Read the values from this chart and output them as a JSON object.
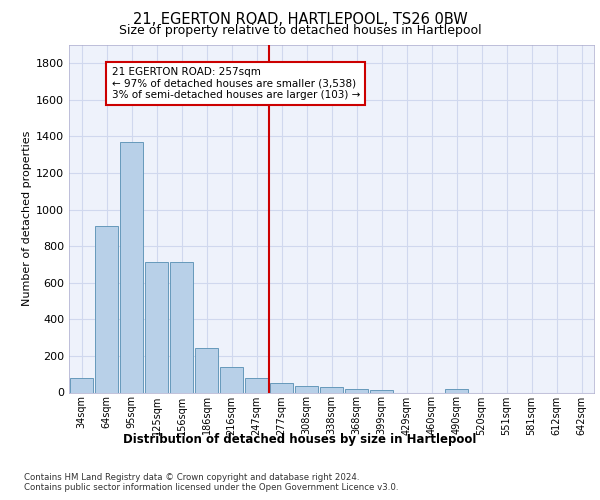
{
  "title": "21, EGERTON ROAD, HARTLEPOOL, TS26 0BW",
  "subtitle": "Size of property relative to detached houses in Hartlepool",
  "xlabel": "Distribution of detached houses by size in Hartlepool",
  "ylabel": "Number of detached properties",
  "categories": [
    "34sqm",
    "64sqm",
    "95sqm",
    "125sqm",
    "156sqm",
    "186sqm",
    "216sqm",
    "247sqm",
    "277sqm",
    "308sqm",
    "338sqm",
    "368sqm",
    "399sqm",
    "429sqm",
    "460sqm",
    "490sqm",
    "520sqm",
    "551sqm",
    "581sqm",
    "612sqm",
    "642sqm"
  ],
  "values": [
    80,
    910,
    1370,
    715,
    715,
    245,
    140,
    80,
    50,
    35,
    30,
    20,
    15,
    0,
    0,
    20,
    0,
    0,
    0,
    0,
    0
  ],
  "bar_color": "#b8d0e8",
  "bar_edge_color": "#6699bb",
  "vline_index": 7.5,
  "vline_color": "#cc0000",
  "ylim": [
    0,
    1900
  ],
  "yticks": [
    0,
    200,
    400,
    600,
    800,
    1000,
    1200,
    1400,
    1600,
    1800
  ],
  "annotation_title": "21 EGERTON ROAD: 257sqm",
  "annotation_line1": "← 97% of detached houses are smaller (3,538)",
  "annotation_line2": "3% of semi-detached houses are larger (103) →",
  "annotation_box_color": "#cc0000",
  "grid_color": "#d0d8ee",
  "bg_color": "#eef2fb",
  "footer1": "Contains HM Land Registry data © Crown copyright and database right 2024.",
  "footer2": "Contains public sector information licensed under the Open Government Licence v3.0."
}
